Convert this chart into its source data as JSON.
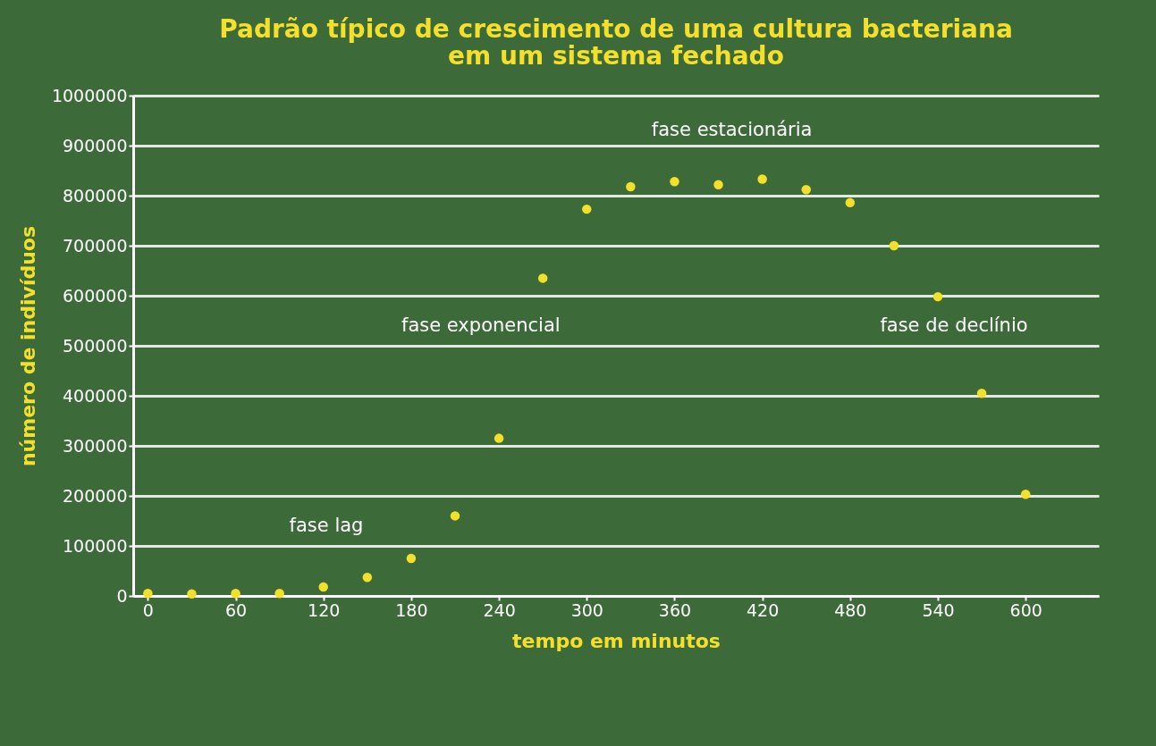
{
  "chart_data": {
    "type": "scatter",
    "title": "Padrão típico de crescimento de uma cultura bacteriana em um sistema fechado",
    "xlabel": "tempo em minutos",
    "ylabel": "número de indivíduos",
    "x": [
      0,
      30,
      60,
      90,
      120,
      150,
      180,
      210,
      240,
      270,
      300,
      330,
      360,
      390,
      420,
      450,
      480,
      510,
      540,
      570,
      600
    ],
    "series": [
      {
        "color": "#f4e02a",
        "values": [
          5000,
          4000,
          5000,
          5000,
          18000,
          37000,
          75000,
          160000,
          315000,
          635000,
          773000,
          818000,
          828000,
          822000,
          833000,
          812000,
          786000,
          700000,
          598000,
          405000,
          203000
        ]
      }
    ],
    "xlim": [
      -10,
      650
    ],
    "xticks": [
      0,
      60,
      120,
      180,
      240,
      300,
      360,
      420,
      480,
      540,
      600
    ],
    "ylim": [
      0,
      1000000
    ],
    "yticks": [
      0,
      100000,
      200000,
      300000,
      400000,
      500000,
      600000,
      700000,
      800000,
      900000,
      1000000
    ],
    "grid": "y",
    "marker": "circle",
    "annotations": [
      "fase lag",
      "fase exponencial",
      "fase estacionária",
      "fase de declínio"
    ]
  }
}
